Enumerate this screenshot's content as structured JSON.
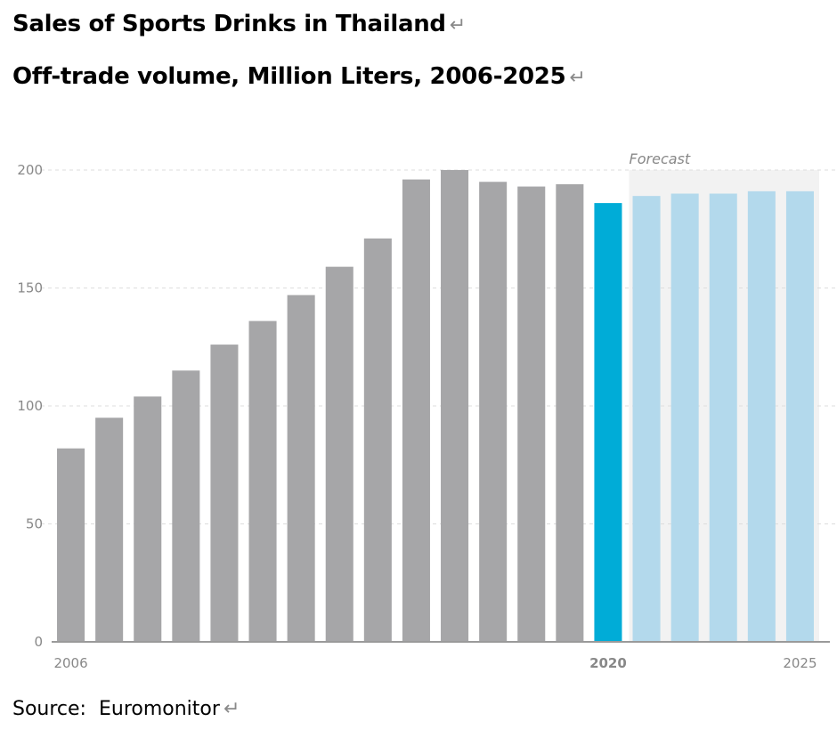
{
  "title": "Sales of Sports Drinks in Thailand",
  "subtitle": "Off-trade volume, Million Liters, 2006-2025",
  "return_glyph": "↵",
  "source_label": "Source:",
  "source_value": "Euromonitor",
  "colors": {
    "historic": "#a6a6a8",
    "current": "#00acd7",
    "forecast": "#b3d9ec",
    "forecast_band": "#f2f2f2",
    "grid": "#dddddd",
    "axis_text": "#888888",
    "current_label": "#1aa6d4"
  },
  "chart_data": {
    "type": "bar",
    "categories": [
      "2006",
      "2007",
      "2008",
      "2009",
      "2010",
      "2011",
      "2012",
      "2013",
      "2014",
      "2015",
      "2016",
      "2017",
      "2018",
      "2019",
      "2020",
      "2021",
      "2022",
      "2023",
      "2024",
      "2025"
    ],
    "values": [
      82,
      95,
      104,
      115,
      126,
      136,
      147,
      159,
      171,
      196,
      200,
      195,
      193,
      194,
      186,
      189,
      190,
      190,
      191,
      191
    ],
    "x_tick_labels": [
      {
        "category": "2006",
        "label": "2006"
      },
      {
        "category": "2020",
        "label": "2020"
      },
      {
        "category": "2025",
        "label": "2025"
      }
    ],
    "y_ticks": [
      0,
      50,
      100,
      150,
      200
    ],
    "ylim": [
      0,
      200
    ],
    "forecast_label": "Forecast",
    "current_year": "2020",
    "forecast_from": "2021",
    "grid": true
  }
}
